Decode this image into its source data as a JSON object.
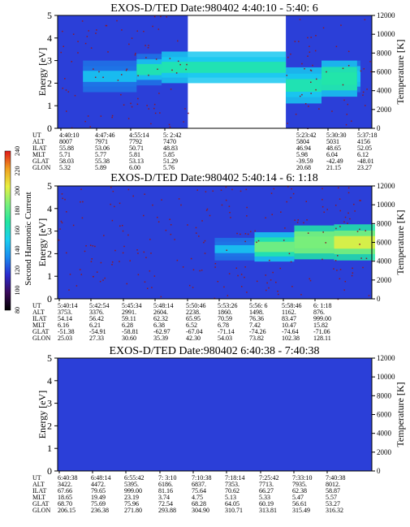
{
  "colors": {
    "background_low": "#2b3fd8",
    "gap": "#ffffff",
    "ink": "#000000",
    "speckle": "#8b1a2a",
    "band_mid": "#1f74e6",
    "band_hi": "#19c8f0",
    "band_peak": "#22e6a8",
    "band_top": "#7af07a"
  },
  "colorbar": {
    "label": "Second Harmonic Current",
    "ticks": [
      "80",
      "100",
      "120",
      "140",
      "160",
      "180",
      "200",
      "220",
      "240"
    ],
    "stops": [
      "#000000",
      "#3a0a5a",
      "#2b2bd0",
      "#1a8cf0",
      "#1ad0f0",
      "#22e6a0",
      "#7af07a",
      "#e8f040",
      "#f0a020",
      "#e01818"
    ]
  },
  "chart_data": [
    {
      "type": "heatmap",
      "title": "EXOS-D/TED   Date:980402   4:40:10 - 5:40: 6",
      "ylabel": "Energy [eV]",
      "ylabel2": "Temperature [K]",
      "ylim": [
        0,
        5
      ],
      "yticks": [
        "0",
        "1",
        "2",
        "3",
        "4",
        "5"
      ],
      "y2lim": [
        0,
        12000
      ],
      "y2ticks": [
        "0",
        "2000",
        "4000",
        "6000",
        "8000",
        "10000",
        "12000"
      ],
      "time_range": [
        "4:40:10",
        "5:40:6"
      ],
      "data_gaps": [
        [
          "5:05:00",
          "5:23:42"
        ]
      ],
      "band": [
        {
          "t": "4:45:00",
          "energy_center": 2.3,
          "energy_width": 1.4,
          "level": 120
        },
        {
          "t": "4:55:14",
          "energy_center": 2.6,
          "energy_width": 1.4,
          "level": 145
        },
        {
          "t": "5:00:00",
          "energy_center": 2.7,
          "energy_width": 1.4,
          "level": 150
        },
        {
          "t": "5:23:42",
          "energy_center": 1.9,
          "energy_width": 1.6,
          "level": 150
        },
        {
          "t": "5:30:30",
          "energy_center": 2.2,
          "energy_width": 1.6,
          "level": 160
        },
        {
          "t": "5:37:18",
          "energy_center": 2.3,
          "energy_width": 1.4,
          "level": 135
        }
      ],
      "table": {
        "rows": [
          "UT",
          "ALT",
          "ILAT",
          "MLT",
          "GLAT",
          "GLON"
        ],
        "columns": [
          [
            "4:40:10",
            "8007",
            "55.88",
            "5.71",
            "58.03",
            "5.32"
          ],
          [
            "4:47:46",
            "7971",
            "53.06",
            "5.77",
            "55.38",
            "5.89"
          ],
          [
            "4:55:14",
            "7792",
            "50.71",
            "5.81",
            "53.13",
            "6.00"
          ],
          [
            "5: 2:42",
            "7470",
            "48.83",
            "5.85",
            "51.29",
            "5.76"
          ],
          [
            "5:23:42",
            "5804",
            "46.94",
            "5.98",
            "-39.59",
            "20.68"
          ],
          [
            "5:30:30",
            "5031",
            "48.65",
            "6.04",
            "-42.49",
            "21.15"
          ],
          [
            "5:37:18",
            "4156",
            "52.05",
            "6.12",
            "-48.01",
            "23.27"
          ]
        ]
      }
    },
    {
      "type": "heatmap",
      "title": "EXOS-D/TED   Date:980402   5:40:14 - 6: 1:18",
      "ylabel": "Energy [eV]",
      "ylabel2": "Temperature [K]",
      "ylim": [
        0,
        5
      ],
      "yticks": [
        "0",
        "1",
        "2",
        "3",
        "4",
        "5"
      ],
      "y2lim": [
        0,
        12000
      ],
      "y2ticks": [
        "0",
        "2000",
        "4000",
        "6000",
        "8000",
        "10000",
        "12000"
      ],
      "time_range": [
        "5:40:14",
        "6:1:18"
      ],
      "band": [
        {
          "t": "5:50:46",
          "energy_center": 2.2,
          "energy_width": 1.0,
          "level": 120
        },
        {
          "t": "5:53:26",
          "energy_center": 2.3,
          "energy_width": 1.3,
          "level": 175
        },
        {
          "t": "5:56:06",
          "energy_center": 2.5,
          "energy_width": 1.5,
          "level": 190
        },
        {
          "t": "5:58:46",
          "energy_center": 2.5,
          "energy_width": 1.6,
          "level": 200
        },
        {
          "t": "6:01:18",
          "energy_center": 2.5,
          "energy_width": 1.6,
          "level": 195
        }
      ],
      "table": {
        "rows": [
          "UT",
          "ALT",
          "ILAT",
          "MLT",
          "GLAT",
          "GLON"
        ],
        "columns": [
          [
            "5:40:14",
            "3753.",
            "54.14",
            "6.16",
            "-51.38",
            "25.03"
          ],
          [
            "5:42:54",
            "3376.",
            "56.42",
            "6.21",
            "-54.91",
            "27.33"
          ],
          [
            "5:45:34",
            "2991.",
            "59.11",
            "6.28",
            "-58.81",
            "30.60"
          ],
          [
            "5:48:14",
            "2604.",
            "62.32",
            "6.38",
            "-62.97",
            "35.39"
          ],
          [
            "5:50:46",
            "2238.",
            "65.95",
            "6.52",
            "-67.04",
            "42.30"
          ],
          [
            "5:53:26",
            "1860.",
            "70.59",
            "6.78",
            "-71.14",
            "54.03"
          ],
          [
            "5:56: 6",
            "1498.",
            "76.36",
            "7.42",
            "-74.26",
            "73.82"
          ],
          [
            "5:58:46",
            "1162.",
            "83.47",
            "10.47",
            "-74.64",
            "102.38"
          ],
          [
            "6: 1:18",
            "876.",
            "999.00",
            "15.82",
            "-71.06",
            "128.11"
          ]
        ]
      }
    },
    {
      "type": "heatmap",
      "title": "EXOS-D/TED   Date:980402   6:40:38 - 7:40:38",
      "ylabel": "Energy [eV]",
      "ylabel2": "Temperature [K]",
      "ylim": [
        0,
        5
      ],
      "yticks": [
        "0",
        "1",
        "2",
        "3",
        "4",
        "5"
      ],
      "y2lim": [
        0,
        12000
      ],
      "y2ticks": [
        "0",
        "2000",
        "4000",
        "6000",
        "8000",
        "10000",
        "12000"
      ],
      "time_range": [
        "6:40:38",
        "7:40:38"
      ],
      "band": [],
      "table": {
        "rows": [
          "UT",
          "ALT",
          "ILAT",
          "MLT",
          "GLAT",
          "GLON"
        ],
        "columns": [
          [
            "6:40:38",
            "3422.",
            "67.66",
            "18.65",
            "68.70",
            "206.15"
          ],
          [
            "6:48:14",
            "4472.",
            "79.65",
            "19.49",
            "75.69",
            "236.38"
          ],
          [
            "6:55:42",
            "5395.",
            "999.00",
            "23.19",
            "75.96",
            "271.80"
          ],
          [
            "7: 3:10",
            "6186.",
            "81.16",
            "3.74",
            "72.54",
            "293.88"
          ],
          [
            "7:10:38",
            "6837.",
            "75.64",
            "4.75",
            "68.28",
            "304.90"
          ],
          [
            "7:18:14",
            "7353.",
            "70.62",
            "5.13",
            "64.05",
            "310.71"
          ],
          [
            "7:25:42",
            "7713.",
            "66.27",
            "5.33",
            "60.19",
            "313.81"
          ],
          [
            "7:33:10",
            "7935.",
            "62.38",
            "5.47",
            "56.61",
            "315.49"
          ],
          [
            "7:40:38",
            "8012.",
            "58.87",
            "5.57",
            "53.27",
            "316.32"
          ]
        ]
      }
    }
  ]
}
